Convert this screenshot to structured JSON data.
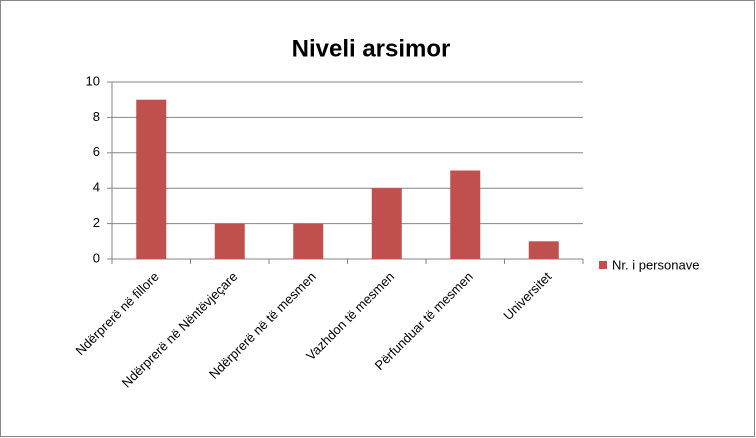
{
  "chart_data": {
    "type": "bar",
    "title": "Niveli arsimor",
    "categories": [
      "Ndërprerë në fillore",
      "Ndërprerë në Nëntëvjeçare",
      "Ndërprerë në të mesmen",
      "Vazhdon të mesmen",
      "Përfunduar të mesmen",
      "Universitet"
    ],
    "series": [
      {
        "name": "Nr. i personave",
        "color": "#c0504d",
        "values": [
          9,
          2,
          2,
          4,
          5,
          1
        ]
      }
    ],
    "ylim": [
      0,
      10
    ],
    "yticks": [
      0,
      2,
      4,
      6,
      8,
      10
    ],
    "grid": true,
    "legend": "right"
  }
}
